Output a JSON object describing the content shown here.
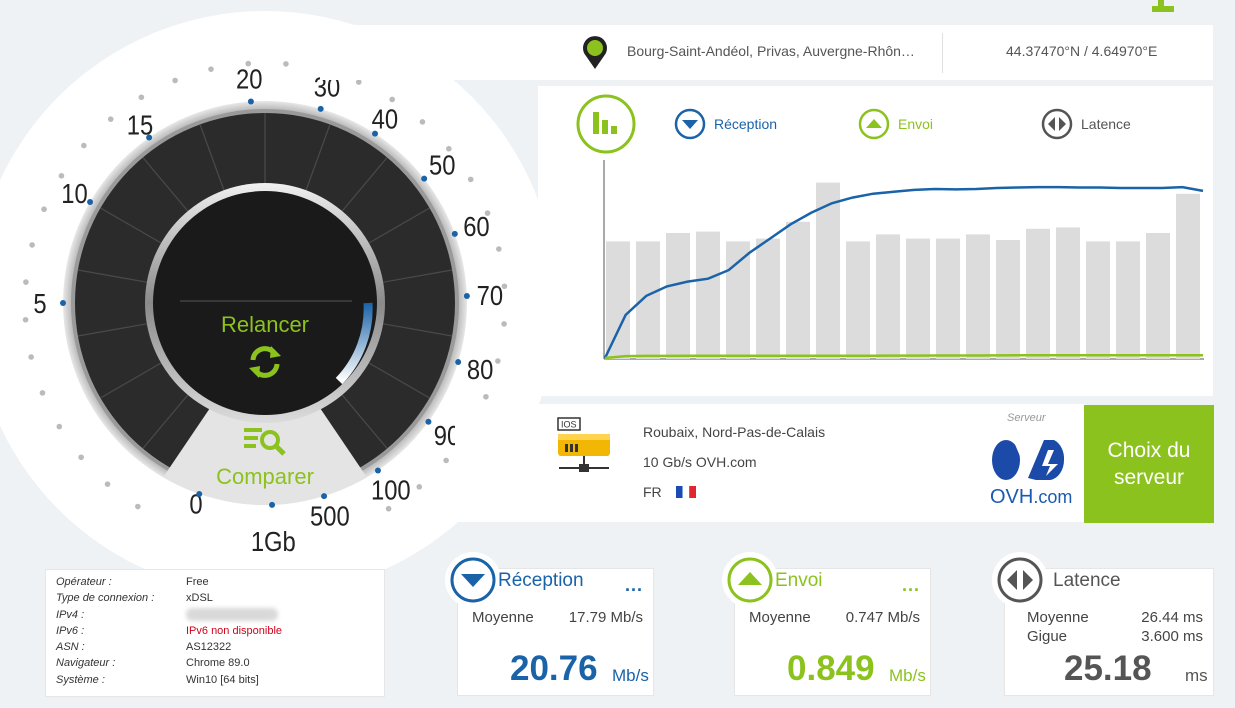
{
  "location": {
    "city": "Bourg-Saint-Andéol, Privas, Auvergne-Rhôn…",
    "coords": "44.37470°N / 4.64970°E"
  },
  "gauge": {
    "scale_labels": [
      "0",
      "5",
      "10",
      "15",
      "20",
      "30",
      "40",
      "50",
      "60",
      "70",
      "80",
      "90",
      "100",
      "500",
      "1Gb"
    ],
    "restart_label": "Relancer",
    "compare_label": "Comparer"
  },
  "legend": {
    "reception": "Réception",
    "upload": "Envoi",
    "latency": "Latence"
  },
  "colors": {
    "download": "#1a63a8",
    "upload": "#8cc21e",
    "latency": "#555555",
    "bars": "#dcdcdc"
  },
  "chart_data": {
    "type": "line",
    "bars_relative": [
      0.84,
      0.84,
      0.9,
      0.91,
      0.84,
      0.86,
      0.98,
      1.26,
      0.84,
      0.89,
      0.86,
      0.86,
      0.89,
      0.85,
      0.93,
      0.94,
      0.84,
      0.84,
      0.9,
      1.18
    ],
    "series": [
      {
        "name": "Réception",
        "values": [
          0,
          4.5,
          6.5,
          7.5,
          8.0,
          8.3,
          9.2,
          11.0,
          12.5,
          14.0,
          15.2,
          16.2,
          16.8,
          17.2,
          17.4,
          17.6,
          17.7,
          17.65,
          17.7,
          17.8,
          17.85,
          17.9,
          17.9,
          17.85,
          17.85,
          17.8,
          17.8,
          17.8,
          17.9,
          17.5
        ]
      },
      {
        "name": "Envoi",
        "values": [
          0,
          0.2,
          0.22,
          0.22,
          0.23,
          0.23,
          0.23,
          0.23,
          0.24,
          0.24,
          0.24,
          0.24,
          0.24,
          0.24,
          0.25,
          0.25,
          0.26,
          0.26,
          0.26,
          0.27,
          0.28,
          0.29,
          0.28,
          0.28,
          0.28,
          0.28,
          0.28,
          0.28,
          0.28,
          0.28
        ]
      }
    ]
  },
  "server": {
    "location": "Roubaix, Nord-Pas-de-Calais",
    "provider": "10 Gb/s OVH.com",
    "country": "FR",
    "label": "Serveur",
    "logo_text": "OVH",
    "logo_suffix": ".com",
    "icon_tag": "IOS",
    "choose_line1": "Choix du",
    "choose_line2": "serveur"
  },
  "info": {
    "rows": [
      {
        "k": "Opérateur :",
        "v": "Free"
      },
      {
        "k": "Type de connexion :",
        "v": "xDSL"
      },
      {
        "k": "IPv4 :",
        "v": ""
      },
      {
        "k": "IPv6 :",
        "v": "IPv6 non disponible"
      },
      {
        "k": "ASN :",
        "v": "AS12322"
      },
      {
        "k": "Navigateur :",
        "v": "Chrome 89.0"
      },
      {
        "k": "Système :",
        "v": "Win10 [64 bits]"
      }
    ]
  },
  "cards": {
    "reception": {
      "title": "Réception",
      "more": "...",
      "avg_label": "Moyenne",
      "avg_value": "17.79 Mb/s",
      "big": "20.76",
      "unit": "Mb/s"
    },
    "upload": {
      "title": "Envoi",
      "more": "...",
      "avg_label": "Moyenne",
      "avg_value": "0.747 Mb/s",
      "big": "0.849",
      "unit": "Mb/s"
    },
    "latency": {
      "title": "Latence",
      "avg_label": "Moyenne",
      "avg_value": "26.44 ms",
      "jitter_label": "Gigue",
      "jitter_value": "3.600 ms",
      "big": "25.18",
      "unit": "ms"
    }
  }
}
